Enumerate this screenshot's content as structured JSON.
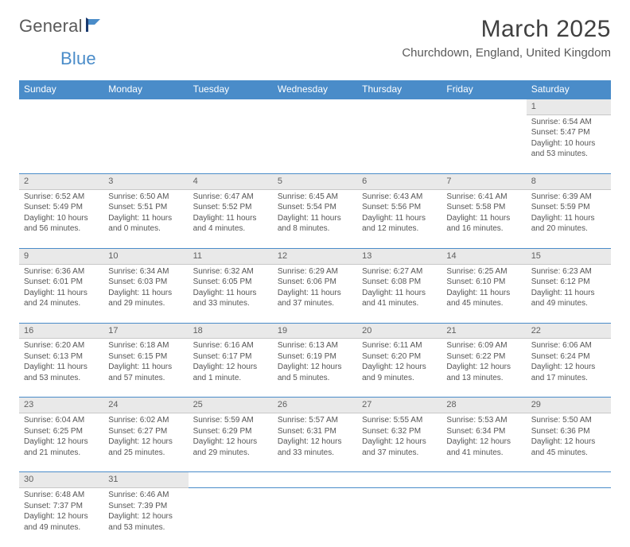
{
  "brand": {
    "part1": "General",
    "part2": "Blue"
  },
  "title": "March 2025",
  "location": "Churchdown, England, United Kingdom",
  "colors": {
    "accent": "#4a8cc9",
    "daynum_bg": "#e9e9e9",
    "text": "#404040",
    "subtext": "#555555"
  },
  "day_headers": [
    "Sunday",
    "Monday",
    "Tuesday",
    "Wednesday",
    "Thursday",
    "Friday",
    "Saturday"
  ],
  "weeks": [
    [
      null,
      null,
      null,
      null,
      null,
      null,
      {
        "n": "1",
        "sr": "6:54 AM",
        "ss": "5:47 PM",
        "dl": "10 hours and 53 minutes."
      }
    ],
    [
      {
        "n": "2",
        "sr": "6:52 AM",
        "ss": "5:49 PM",
        "dl": "10 hours and 56 minutes."
      },
      {
        "n": "3",
        "sr": "6:50 AM",
        "ss": "5:51 PM",
        "dl": "11 hours and 0 minutes."
      },
      {
        "n": "4",
        "sr": "6:47 AM",
        "ss": "5:52 PM",
        "dl": "11 hours and 4 minutes."
      },
      {
        "n": "5",
        "sr": "6:45 AM",
        "ss": "5:54 PM",
        "dl": "11 hours and 8 minutes."
      },
      {
        "n": "6",
        "sr": "6:43 AM",
        "ss": "5:56 PM",
        "dl": "11 hours and 12 minutes."
      },
      {
        "n": "7",
        "sr": "6:41 AM",
        "ss": "5:58 PM",
        "dl": "11 hours and 16 minutes."
      },
      {
        "n": "8",
        "sr": "6:39 AM",
        "ss": "5:59 PM",
        "dl": "11 hours and 20 minutes."
      }
    ],
    [
      {
        "n": "9",
        "sr": "6:36 AM",
        "ss": "6:01 PM",
        "dl": "11 hours and 24 minutes."
      },
      {
        "n": "10",
        "sr": "6:34 AM",
        "ss": "6:03 PM",
        "dl": "11 hours and 29 minutes."
      },
      {
        "n": "11",
        "sr": "6:32 AM",
        "ss": "6:05 PM",
        "dl": "11 hours and 33 minutes."
      },
      {
        "n": "12",
        "sr": "6:29 AM",
        "ss": "6:06 PM",
        "dl": "11 hours and 37 minutes."
      },
      {
        "n": "13",
        "sr": "6:27 AM",
        "ss": "6:08 PM",
        "dl": "11 hours and 41 minutes."
      },
      {
        "n": "14",
        "sr": "6:25 AM",
        "ss": "6:10 PM",
        "dl": "11 hours and 45 minutes."
      },
      {
        "n": "15",
        "sr": "6:23 AM",
        "ss": "6:12 PM",
        "dl": "11 hours and 49 minutes."
      }
    ],
    [
      {
        "n": "16",
        "sr": "6:20 AM",
        "ss": "6:13 PM",
        "dl": "11 hours and 53 minutes."
      },
      {
        "n": "17",
        "sr": "6:18 AM",
        "ss": "6:15 PM",
        "dl": "11 hours and 57 minutes."
      },
      {
        "n": "18",
        "sr": "6:16 AM",
        "ss": "6:17 PM",
        "dl": "12 hours and 1 minute."
      },
      {
        "n": "19",
        "sr": "6:13 AM",
        "ss": "6:19 PM",
        "dl": "12 hours and 5 minutes."
      },
      {
        "n": "20",
        "sr": "6:11 AM",
        "ss": "6:20 PM",
        "dl": "12 hours and 9 minutes."
      },
      {
        "n": "21",
        "sr": "6:09 AM",
        "ss": "6:22 PM",
        "dl": "12 hours and 13 minutes."
      },
      {
        "n": "22",
        "sr": "6:06 AM",
        "ss": "6:24 PM",
        "dl": "12 hours and 17 minutes."
      }
    ],
    [
      {
        "n": "23",
        "sr": "6:04 AM",
        "ss": "6:25 PM",
        "dl": "12 hours and 21 minutes."
      },
      {
        "n": "24",
        "sr": "6:02 AM",
        "ss": "6:27 PM",
        "dl": "12 hours and 25 minutes."
      },
      {
        "n": "25",
        "sr": "5:59 AM",
        "ss": "6:29 PM",
        "dl": "12 hours and 29 minutes."
      },
      {
        "n": "26",
        "sr": "5:57 AM",
        "ss": "6:31 PM",
        "dl": "12 hours and 33 minutes."
      },
      {
        "n": "27",
        "sr": "5:55 AM",
        "ss": "6:32 PM",
        "dl": "12 hours and 37 minutes."
      },
      {
        "n": "28",
        "sr": "5:53 AM",
        "ss": "6:34 PM",
        "dl": "12 hours and 41 minutes."
      },
      {
        "n": "29",
        "sr": "5:50 AM",
        "ss": "6:36 PM",
        "dl": "12 hours and 45 minutes."
      }
    ],
    [
      {
        "n": "30",
        "sr": "6:48 AM",
        "ss": "7:37 PM",
        "dl": "12 hours and 49 minutes."
      },
      {
        "n": "31",
        "sr": "6:46 AM",
        "ss": "7:39 PM",
        "dl": "12 hours and 53 minutes."
      },
      null,
      null,
      null,
      null,
      null
    ]
  ],
  "labels": {
    "sunrise": "Sunrise: ",
    "sunset": "Sunset: ",
    "daylight": "Daylight: "
  }
}
